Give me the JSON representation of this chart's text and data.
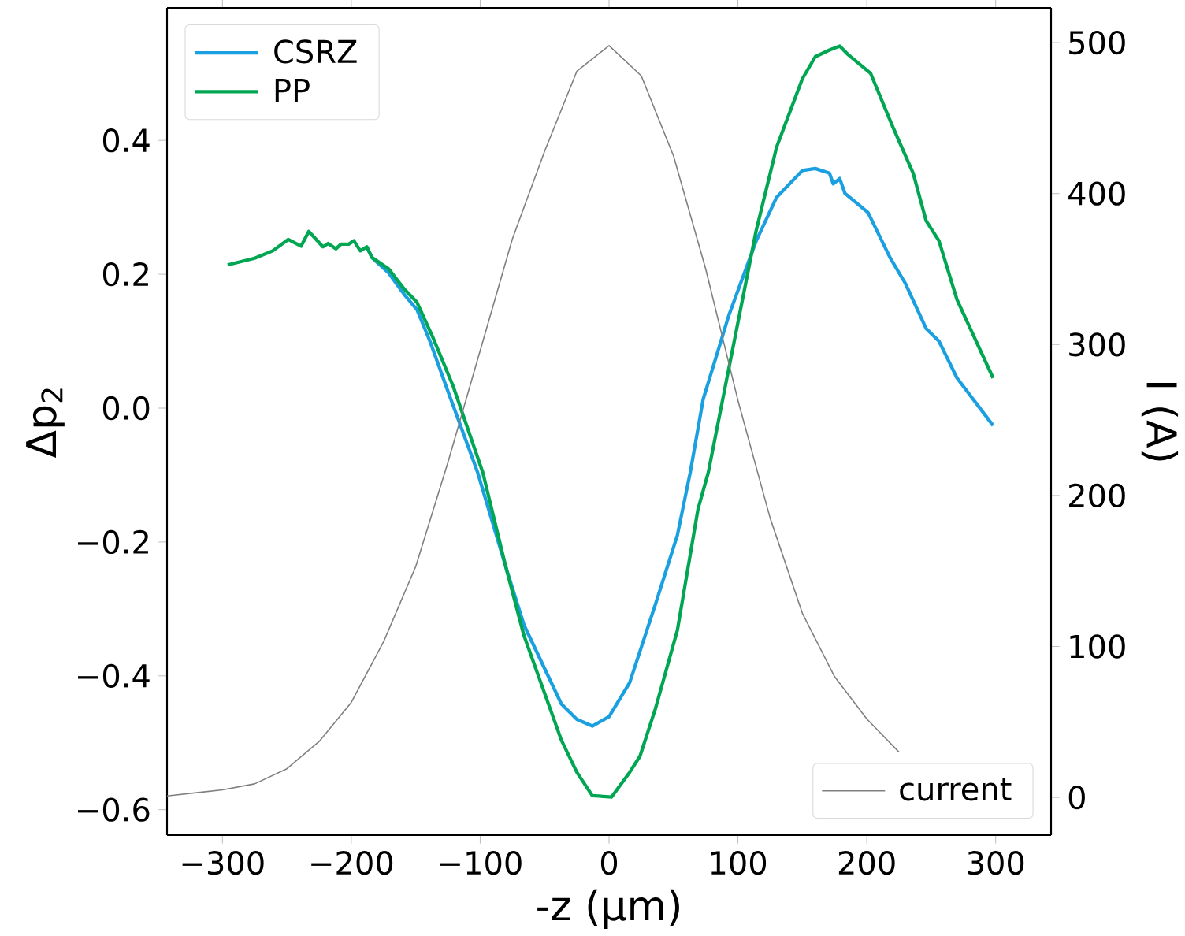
{
  "chart_data": {
    "type": "line",
    "xlabel": "-z (μm)",
    "ylabel": "Δp$_{2}$",
    "y2label": "I (A)",
    "xlim": [
      -343,
      343
    ],
    "ylim": [
      -0.638,
      0.598
    ],
    "y2lim": [
      -25,
      523
    ],
    "xticks": [
      {
        "value": -300,
        "label": "−300"
      },
      {
        "value": -200,
        "label": "−200"
      },
      {
        "value": -100,
        "label": "−100"
      },
      0,
      100,
      200,
      300
    ],
    "yticks": [
      {
        "value": -0.6,
        "label": "−0.6"
      },
      {
        "value": -0.4,
        "label": "−0.4"
      },
      {
        "value": -0.2,
        "label": "−0.2"
      },
      {
        "value": 0,
        "label": "0.0"
      },
      0.2,
      0.4
    ],
    "y2ticks": [
      0,
      100,
      200,
      300,
      400,
      500
    ],
    "legend": "top left",
    "grid": false,
    "series": [
      {
        "name": "CSRZ",
        "color": "#1a9fe0",
        "x": [
          -188,
          -184,
          -171,
          -159,
          -149,
          -139,
          -125,
          -102,
          -80,
          -66,
          -37,
          -25,
          -13,
          0,
          16,
          36,
          53,
          63,
          73,
          93,
          114,
          130,
          150,
          160,
          171,
          174,
          179,
          183,
          201,
          218,
          230,
          246,
          256,
          270,
          298
        ],
        "values": [
          0.241,
          0.225,
          0.202,
          0.17,
          0.147,
          0.1,
          0.025,
          -0.096,
          -0.238,
          -0.324,
          -0.442,
          -0.465,
          -0.475,
          -0.461,
          -0.41,
          -0.293,
          -0.19,
          -0.096,
          0.013,
          0.139,
          0.249,
          0.315,
          0.355,
          0.358,
          0.351,
          0.335,
          0.343,
          0.321,
          0.292,
          0.225,
          0.186,
          0.119,
          0.1,
          0.045,
          -0.026
        ]
      },
      {
        "name": "PP",
        "color": "#00a651",
        "x": [
          -296,
          -275,
          -261,
          -249,
          -239,
          -233,
          -222,
          -218,
          -212,
          -208,
          -202,
          -198,
          -193,
          -188,
          -184,
          -171,
          -159,
          -149,
          -137,
          -121,
          -98,
          -80,
          -66,
          -37,
          -25,
          -13,
          2,
          16,
          24,
          36,
          53,
          69,
          77,
          89,
          114,
          130,
          150,
          160,
          171,
          179,
          185,
          203,
          220,
          236,
          246,
          256,
          270,
          298
        ],
        "values": [
          0.214,
          0.224,
          0.235,
          0.252,
          0.242,
          0.264,
          0.241,
          0.246,
          0.238,
          0.245,
          0.245,
          0.25,
          0.235,
          0.241,
          0.225,
          0.208,
          0.178,
          0.158,
          0.107,
          0.033,
          -0.096,
          -0.238,
          -0.34,
          -0.496,
          -0.544,
          -0.579,
          -0.581,
          -0.544,
          -0.52,
          -0.449,
          -0.332,
          -0.151,
          -0.096,
          0.021,
          0.264,
          0.39,
          0.492,
          0.525,
          0.535,
          0.541,
          0.529,
          0.5,
          0.421,
          0.351,
          0.28,
          0.25,
          0.162,
          0.045
        ]
      },
      {
        "name": "current",
        "color": "#808080",
        "axis": "y2",
        "x": [
          -343,
          -300,
          -275,
          -250,
          -225,
          -200,
          -175,
          -150,
          -125,
          -100,
          -75,
          -50,
          -25,
          0,
          25,
          50,
          75,
          100,
          125,
          150,
          175,
          200,
          225
        ],
        "values": [
          1,
          5,
          9,
          19,
          37,
          63,
          103,
          153,
          222,
          296,
          370,
          428,
          481,
          498,
          478,
          425,
          350,
          263,
          185,
          122,
          80,
          52,
          30
        ]
      }
    ]
  }
}
